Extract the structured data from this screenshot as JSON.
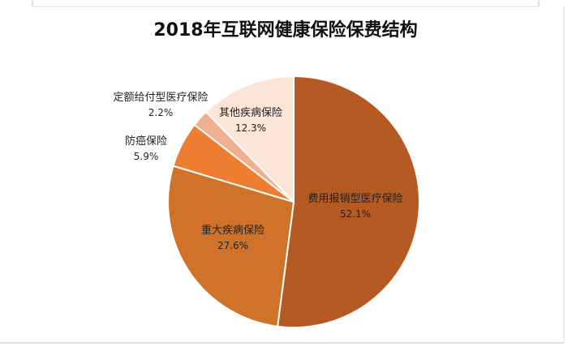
{
  "chart_data": {
    "type": "pie",
    "title": "2018年互联网健康保险保费结构",
    "categories": [
      "费用报销型医疗保险",
      "重大疾病保险",
      "防癌保险",
      "定额给付型医疗保险",
      "其他疾病保险"
    ],
    "values": [
      52.1,
      27.6,
      5.9,
      2.2,
      12.3
    ],
    "value_labels": [
      "52.1%",
      "27.6%",
      "5.9%",
      "2.2%",
      "12.3%"
    ],
    "colors": [
      "#B45A22",
      "#D1722B",
      "#ED7D31",
      "#F0AF8F",
      "#FBE5D6"
    ],
    "start_angle_deg": 0,
    "direction": "clockwise",
    "legend": "none"
  }
}
